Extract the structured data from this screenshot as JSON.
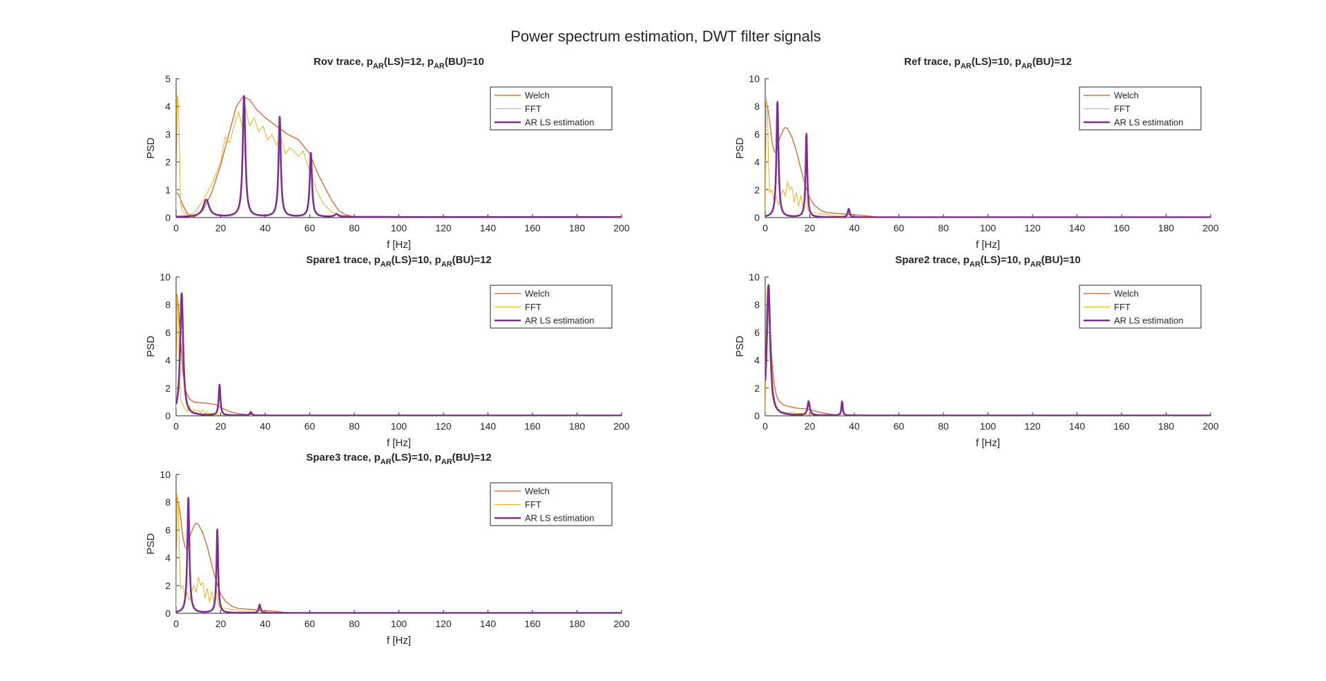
{
  "figure": {
    "title": "Power spectrum estimation, DWT filter signals",
    "colors": {
      "welch": "#D95319",
      "fft": "#EDB120",
      "ar": "#7E2F8E",
      "axis": "#262626"
    }
  },
  "chart_data": [
    {
      "type": "line",
      "title": {
        "name": "Rov",
        "ls": "12",
        "bu": "10"
      },
      "xlabel": "f [Hz]",
      "ylabel": "PSD",
      "xlim": [
        0,
        200
      ],
      "ylim": [
        0,
        5
      ],
      "xticks": [
        0,
        20,
        40,
        60,
        80,
        100,
        120,
        140,
        160,
        180,
        200
      ],
      "yticks": [
        0,
        1,
        2,
        3,
        4,
        5
      ],
      "legend": {
        "placement": "top-right",
        "entries": [
          "Welch",
          "FFT",
          "AR LS estimation"
        ]
      },
      "series": [
        {
          "name": "Welch",
          "x": [
            0,
            1,
            3,
            5,
            8,
            12,
            16,
            20,
            24,
            27,
            30,
            33,
            36,
            40,
            45,
            50,
            55,
            60,
            63,
            66,
            70,
            73,
            76,
            80,
            90,
            200
          ],
          "y": [
            0.9,
            0.85,
            0.45,
            0.15,
            0.02,
            0.25,
            0.9,
            1.9,
            3.1,
            4.0,
            4.35,
            4.25,
            3.9,
            3.6,
            3.3,
            3.0,
            2.8,
            2.3,
            1.7,
            1.2,
            0.6,
            0.25,
            0.1,
            0.03,
            0.01,
            0.0
          ]
        },
        {
          "name": "FFT",
          "x": [
            0,
            0.5,
            1,
            1.5,
            2,
            3,
            5,
            8,
            12,
            16,
            20,
            22,
            24,
            26,
            28,
            30,
            31,
            33,
            35,
            37,
            39,
            41,
            43,
            45,
            47,
            49,
            51,
            53,
            55,
            57,
            59,
            61,
            63,
            66,
            70,
            74,
            80,
            90,
            200
          ],
          "y": [
            0.3,
            4.4,
            4.2,
            2.5,
            0.5,
            0.2,
            0.1,
            0.15,
            0.6,
            1.2,
            2.0,
            2.9,
            2.7,
            3.3,
            3.8,
            3.2,
            4.0,
            3.3,
            3.6,
            3.1,
            3.3,
            2.8,
            3.0,
            2.6,
            2.9,
            2.3,
            2.5,
            2.4,
            2.2,
            2.4,
            1.9,
            1.5,
            1.0,
            0.5,
            0.2,
            0.08,
            0.03,
            0.01,
            0.0
          ]
        },
        {
          "name": "AR LS estimation",
          "peaks": [
            [
              13.5,
              0.62,
              1.6
            ],
            [
              30.5,
              4.35,
              0.7
            ],
            [
              46.5,
              3.6,
              0.6
            ],
            [
              60.5,
              2.3,
              0.6
            ],
            [
              72,
              0.1,
              1.0
            ]
          ]
        }
      ]
    },
    {
      "type": "line",
      "title": {
        "name": "Ref",
        "ls": "10",
        "bu": "12"
      },
      "xlabel": "f [Hz]",
      "ylabel": "PSD",
      "xlim": [
        0,
        200
      ],
      "ylim": [
        0,
        10
      ],
      "xticks": [
        0,
        20,
        40,
        60,
        80,
        100,
        120,
        140,
        160,
        180,
        200
      ],
      "yticks": [
        0,
        2,
        4,
        6,
        8,
        10
      ],
      "legend": {
        "placement": "top-right",
        "entries": [
          "Welch",
          "FFT",
          "AR LS estimation"
        ]
      },
      "series": [
        {
          "name": "Welch",
          "x": [
            0,
            1,
            2,
            3,
            4,
            5,
            6,
            8,
            9,
            10,
            12,
            14,
            16,
            18,
            20,
            22,
            25,
            28,
            32,
            36,
            40,
            44,
            48,
            52,
            60,
            200
          ],
          "y": [
            8.3,
            8.0,
            7.0,
            5.5,
            4.8,
            4.6,
            5.5,
            6.3,
            6.5,
            6.4,
            5.8,
            4.8,
            3.5,
            2.3,
            1.4,
            0.9,
            0.5,
            0.35,
            0.3,
            0.25,
            0.2,
            0.15,
            0.08,
            0.03,
            0.01,
            0.0
          ]
        },
        {
          "name": "FFT",
          "x": [
            0,
            0.5,
            1,
            1.5,
            2,
            3,
            4,
            5,
            6,
            7,
            8,
            9,
            10,
            11,
            12,
            13,
            14,
            15,
            16,
            17,
            18,
            19,
            20,
            22,
            24,
            26,
            28,
            30,
            35,
            40,
            50,
            200
          ],
          "y": [
            0.5,
            8.6,
            7.8,
            4.0,
            1.8,
            2.0,
            1.2,
            1.5,
            0.9,
            1.6,
            2.0,
            1.5,
            2.6,
            2.0,
            2.2,
            1.1,
            1.8,
            0.8,
            1.6,
            0.7,
            1.9,
            0.6,
            0.4,
            0.35,
            0.3,
            0.25,
            0.2,
            0.15,
            0.1,
            0.05,
            0.01,
            0.0
          ]
        },
        {
          "name": "AR LS estimation",
          "peaks": [
            [
              5.5,
              8.3,
              0.55
            ],
            [
              18.5,
              6.0,
              0.45
            ],
            [
              37.5,
              0.6,
              0.5
            ]
          ]
        }
      ]
    },
    {
      "type": "line",
      "title": {
        "name": "Spare1",
        "ls": "10",
        "bu": "12"
      },
      "xlabel": "f [Hz]",
      "ylabel": "PSD",
      "xlim": [
        0,
        200
      ],
      "ylim": [
        0,
        10
      ],
      "xticks": [
        0,
        20,
        40,
        60,
        80,
        100,
        120,
        140,
        160,
        180,
        200
      ],
      "yticks": [
        0,
        2,
        4,
        6,
        8,
        10
      ],
      "legend": {
        "placement": "top-right",
        "entries": [
          "Welch",
          "FFT",
          "AR LS estimation"
        ]
      },
      "series": [
        {
          "name": "Welch",
          "x": [
            0,
            0.5,
            1,
            2,
            3,
            4,
            5,
            6,
            8,
            10,
            14,
            18,
            20,
            24,
            28,
            32,
            36,
            40,
            200
          ],
          "y": [
            8.5,
            8.7,
            8.0,
            5.5,
            3.2,
            2.0,
            1.5,
            1.2,
            1.0,
            0.95,
            0.9,
            0.8,
            0.6,
            0.3,
            0.15,
            0.08,
            0.03,
            0.01,
            0.0
          ]
        },
        {
          "name": "FFT",
          "x": [
            0,
            0.5,
            1,
            1.5,
            2,
            3,
            4,
            5,
            6,
            7,
            8,
            9,
            10,
            11,
            12,
            13,
            14,
            15,
            16,
            18,
            20,
            25,
            30,
            40,
            200
          ],
          "y": [
            0.5,
            8.8,
            7.5,
            3.0,
            1.2,
            0.8,
            0.5,
            0.3,
            0.7,
            0.2,
            0.5,
            0.2,
            0.4,
            0.2,
            0.45,
            0.15,
            0.3,
            0.1,
            0.2,
            0.08,
            0.05,
            0.03,
            0.02,
            0.01,
            0.0
          ]
        },
        {
          "name": "AR LS estimation",
          "peaks": [
            [
              2.5,
              8.8,
              0.8
            ],
            [
              19.5,
              2.2,
              0.45
            ],
            [
              33.5,
              0.25,
              0.5
            ]
          ]
        }
      ]
    },
    {
      "type": "line",
      "title": {
        "name": "Spare2",
        "ls": "10",
        "bu": "10"
      },
      "xlabel": "f [Hz]",
      "ylabel": "PSD",
      "xlim": [
        0,
        200
      ],
      "ylim": [
        0,
        10
      ],
      "xticks": [
        0,
        20,
        40,
        60,
        80,
        100,
        120,
        140,
        160,
        180,
        200
      ],
      "yticks": [
        0,
        2,
        4,
        6,
        8,
        10
      ],
      "legend": {
        "placement": "top-right",
        "entries": [
          "Welch",
          "FFT",
          "AR LS estimation"
        ]
      },
      "series": [
        {
          "name": "Welch",
          "x": [
            0,
            0.5,
            1,
            1.5,
            2,
            3,
            4,
            5,
            6,
            8,
            10,
            14,
            18,
            20,
            22,
            26,
            30,
            34,
            38,
            200
          ],
          "y": [
            1.5,
            6.0,
            8.8,
            8.4,
            6.8,
            4.0,
            2.3,
            1.5,
            1.1,
            0.8,
            0.7,
            0.55,
            0.5,
            0.45,
            0.35,
            0.2,
            0.1,
            0.04,
            0.01,
            0.0
          ]
        },
        {
          "name": "FFT",
          "x": [
            0,
            0.5,
            1,
            1.5,
            2,
            2.5,
            3,
            4,
            5,
            6,
            7,
            8,
            10,
            12,
            14,
            16,
            18,
            20,
            25,
            30,
            40,
            200
          ],
          "y": [
            0.3,
            7.5,
            9.3,
            8.0,
            5.0,
            3.2,
            1.5,
            0.8,
            0.5,
            0.4,
            0.25,
            0.3,
            0.2,
            0.25,
            0.15,
            0.2,
            0.1,
            0.08,
            0.05,
            0.03,
            0.01,
            0.0
          ]
        },
        {
          "name": "AR LS estimation",
          "peaks": [
            [
              1.5,
              9.4,
              0.9
            ],
            [
              19.5,
              1.0,
              0.6
            ],
            [
              34.5,
              1.0,
              0.35
            ]
          ]
        }
      ]
    },
    {
      "type": "line",
      "title": {
        "name": "Spare3",
        "ls": "10",
        "bu": "12"
      },
      "xlabel": "f [Hz]",
      "ylabel": "PSD",
      "xlim": [
        0,
        200
      ],
      "ylim": [
        0,
        10
      ],
      "xticks": [
        0,
        20,
        40,
        60,
        80,
        100,
        120,
        140,
        160,
        180,
        200
      ],
      "yticks": [
        0,
        2,
        4,
        6,
        8,
        10
      ],
      "legend": {
        "placement": "top-right",
        "entries": [
          "Welch",
          "FFT",
          "AR LS estimation"
        ]
      },
      "series": [
        {
          "name": "Welch",
          "x": [
            0,
            1,
            2,
            3,
            4,
            5,
            6,
            8,
            9,
            10,
            12,
            14,
            16,
            18,
            20,
            22,
            25,
            28,
            32,
            36,
            40,
            44,
            48,
            52,
            60,
            200
          ],
          "y": [
            8.3,
            8.0,
            7.0,
            5.5,
            4.8,
            4.6,
            5.5,
            6.3,
            6.5,
            6.4,
            5.8,
            4.8,
            3.5,
            2.3,
            1.4,
            0.9,
            0.5,
            0.35,
            0.3,
            0.25,
            0.2,
            0.15,
            0.08,
            0.03,
            0.01,
            0.0
          ]
        },
        {
          "name": "FFT",
          "x": [
            0,
            0.5,
            1,
            1.5,
            2,
            3,
            4,
            5,
            6,
            7,
            8,
            9,
            10,
            11,
            12,
            13,
            14,
            15,
            16,
            17,
            18,
            19,
            20,
            22,
            24,
            26,
            28,
            30,
            35,
            40,
            50,
            200
          ],
          "y": [
            0.5,
            8.6,
            7.8,
            4.0,
            1.8,
            2.0,
            1.2,
            1.5,
            0.9,
            1.6,
            2.0,
            1.5,
            2.6,
            2.0,
            2.2,
            1.1,
            1.8,
            0.8,
            1.6,
            0.7,
            1.9,
            0.6,
            0.4,
            0.35,
            0.3,
            0.25,
            0.2,
            0.15,
            0.1,
            0.05,
            0.01,
            0.0
          ]
        },
        {
          "name": "AR LS estimation",
          "peaks": [
            [
              5.5,
              8.3,
              0.55
            ],
            [
              18.5,
              6.0,
              0.45
            ],
            [
              37.5,
              0.6,
              0.5
            ]
          ]
        }
      ]
    }
  ]
}
